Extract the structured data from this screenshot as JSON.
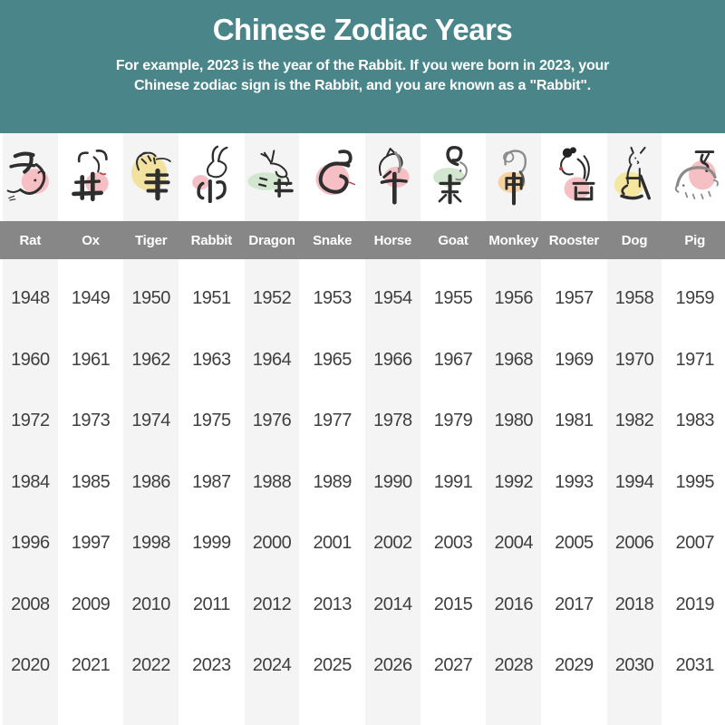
{
  "header": {
    "title": "Chinese Zodiac Years",
    "subtitle_line1": "For example, 2023 is the year of the Rabbit. If you were born in 2023, your",
    "subtitle_line2": "Chinese zodiac sign is the Rabbit, and you are known as a \"Rabbit\".",
    "bg_color": "#4A8689"
  },
  "zodiac": {
    "name_band_color": "#878787",
    "stripe_color": "#F4F4F4",
    "year_text_color": "#3F3F3F",
    "columns": [
      {
        "label": "Rat",
        "chinese_character": "子",
        "blob_color": "#F5BFC3",
        "icon": "rat-icon"
      },
      {
        "label": "Ox",
        "chinese_character": "丑",
        "blob_color": "#F5BFC3",
        "icon": "ox-icon"
      },
      {
        "label": "Tiger",
        "chinese_character": "寅",
        "blob_color": "#F2E2A0",
        "icon": "tiger-icon"
      },
      {
        "label": "Rabbit",
        "chinese_character": "卯",
        "blob_color": "#F5BFC3",
        "icon": "rabbit-icon"
      },
      {
        "label": "Dragon",
        "chinese_character": "辰",
        "blob_color": "#D3E6D0",
        "icon": "dragon-icon"
      },
      {
        "label": "Snake",
        "chinese_character": "巳",
        "blob_color": "#F5BFC3",
        "icon": "snake-icon"
      },
      {
        "label": "Horse",
        "chinese_character": "午",
        "blob_color": "#F5BFC3",
        "icon": "horse-icon"
      },
      {
        "label": "Goat",
        "chinese_character": "未",
        "blob_color": "#D3E6D0",
        "icon": "goat-icon"
      },
      {
        "label": "Monkey",
        "chinese_character": "申",
        "blob_color": "#F6D2A0",
        "icon": "monkey-icon"
      },
      {
        "label": "Rooster",
        "chinese_character": "酉",
        "blob_color": "#F5BFC3",
        "icon": "rooster-icon"
      },
      {
        "label": "Dog",
        "chinese_character": "戌",
        "blob_color": "#F5E79F",
        "icon": "dog-icon"
      },
      {
        "label": "Pig",
        "chinese_character": "亥",
        "blob_color": "#F5BFC3",
        "icon": "pig-icon"
      }
    ],
    "year_rows": [
      [
        1948,
        1949,
        1950,
        1951,
        1952,
        1953,
        1954,
        1955,
        1956,
        1957,
        1958,
        1959
      ],
      [
        1960,
        1961,
        1962,
        1963,
        1964,
        1965,
        1966,
        1967,
        1968,
        1969,
        1970,
        1971
      ],
      [
        1972,
        1973,
        1974,
        1975,
        1976,
        1977,
        1978,
        1979,
        1980,
        1981,
        1982,
        1983
      ],
      [
        1984,
        1985,
        1986,
        1987,
        1988,
        1989,
        1990,
        1991,
        1992,
        1993,
        1994,
        1995
      ],
      [
        1996,
        1997,
        1998,
        1999,
        2000,
        2001,
        2002,
        2003,
        2004,
        2005,
        2006,
        2007
      ],
      [
        2008,
        2009,
        2010,
        2011,
        2012,
        2013,
        2014,
        2015,
        2016,
        2017,
        2018,
        2019
      ],
      [
        2020,
        2021,
        2022,
        2023,
        2024,
        2025,
        2026,
        2027,
        2028,
        2029,
        2030,
        2031
      ]
    ]
  },
  "chart_data": {
    "type": "table",
    "title": "Chinese Zodiac Years",
    "columns": [
      "Rat",
      "Ox",
      "Tiger",
      "Rabbit",
      "Dragon",
      "Snake",
      "Horse",
      "Goat",
      "Monkey",
      "Rooster",
      "Dog",
      "Pig"
    ],
    "rows": [
      [
        1948,
        1949,
        1950,
        1951,
        1952,
        1953,
        1954,
        1955,
        1956,
        1957,
        1958,
        1959
      ],
      [
        1960,
        1961,
        1962,
        1963,
        1964,
        1965,
        1966,
        1967,
        1968,
        1969,
        1970,
        1971
      ],
      [
        1972,
        1973,
        1974,
        1975,
        1976,
        1977,
        1978,
        1979,
        1980,
        1981,
        1982,
        1983
      ],
      [
        1984,
        1985,
        1986,
        1987,
        1988,
        1989,
        1990,
        1991,
        1992,
        1993,
        1994,
        1995
      ],
      [
        1996,
        1997,
        1998,
        1999,
        2000,
        2001,
        2002,
        2003,
        2004,
        2005,
        2006,
        2007
      ],
      [
        2008,
        2009,
        2010,
        2011,
        2012,
        2013,
        2014,
        2015,
        2016,
        2017,
        2018,
        2019
      ],
      [
        2020,
        2021,
        2022,
        2023,
        2024,
        2025,
        2026,
        2027,
        2028,
        2029,
        2030,
        2031
      ]
    ]
  }
}
